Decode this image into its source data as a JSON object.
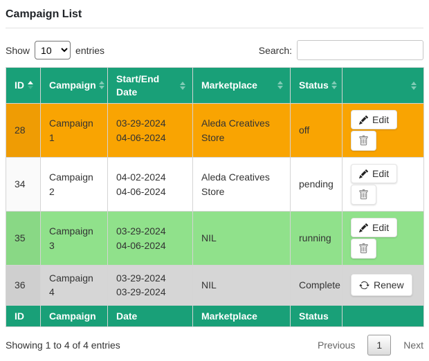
{
  "page": {
    "title": "Campaign List"
  },
  "controls": {
    "show_label": "Show",
    "page_length": "10",
    "entries_label": "entries",
    "search_label": "Search:",
    "search_value": ""
  },
  "colors": {
    "header_green": "#19a078",
    "row_orange": "#f9a402",
    "row_green": "#90e18b",
    "row_gray": "#d6d6d6"
  },
  "table": {
    "headers": [
      {
        "key": "id",
        "label": "ID",
        "sort": "asc"
      },
      {
        "key": "campaign",
        "label": "Campaign",
        "sort": "none"
      },
      {
        "key": "date",
        "label": "Start/End Date",
        "sort": "none"
      },
      {
        "key": "marketplace",
        "label": "Marketplace",
        "sort": "none"
      },
      {
        "key": "status",
        "label": "Status",
        "sort": "none"
      },
      {
        "key": "actions",
        "label": "",
        "sort": "none"
      }
    ],
    "footer": [
      "ID",
      "Campaign",
      "Date",
      "Marketplace",
      "Status",
      ""
    ],
    "rows": [
      {
        "id": "28",
        "campaign": "Campaign 1",
        "start_date": "03-29-2024",
        "end_date": "04-06-2024",
        "marketplace": "Aleda Creatives Store",
        "status": "off",
        "actions": [
          "edit",
          "delete"
        ],
        "row_color": "#f9a402",
        "id_cell_color": "#ef9c04"
      },
      {
        "id": "34",
        "campaign": "Campaign 2",
        "start_date": "04-02-2024",
        "end_date": "04-06-2024",
        "marketplace": "Aleda Creatives Store",
        "status": "pending",
        "actions": [
          "edit",
          "delete"
        ],
        "row_color": "#ffffff",
        "id_cell_color": "#fafafa"
      },
      {
        "id": "35",
        "campaign": "Campaign 3",
        "start_date": "03-29-2024",
        "end_date": "04-06-2024",
        "marketplace": "NIL",
        "status": "running",
        "actions": [
          "edit",
          "delete"
        ],
        "row_color": "#90e18b",
        "id_cell_color": "#89d885"
      },
      {
        "id": "36",
        "campaign": "Campaign 4",
        "start_date": "03-29-2024",
        "end_date": "03-29-2024",
        "marketplace": "NIL",
        "status": "Complete",
        "actions": [
          "renew"
        ],
        "row_color": "#d6d6d6",
        "id_cell_color": "#cfcfcf"
      }
    ]
  },
  "buttons": {
    "edit_label": "Edit",
    "renew_label": "Renew"
  },
  "icons": {
    "edit": "pencil-icon",
    "delete": "trash-icon",
    "renew": "refresh-icon",
    "sort": "sort-arrows-icon"
  },
  "summary": {
    "text": "Showing 1 to 4 of 4 entries"
  },
  "pagination": {
    "previous_label": "Previous",
    "current_page": "1",
    "next_label": "Next"
  }
}
